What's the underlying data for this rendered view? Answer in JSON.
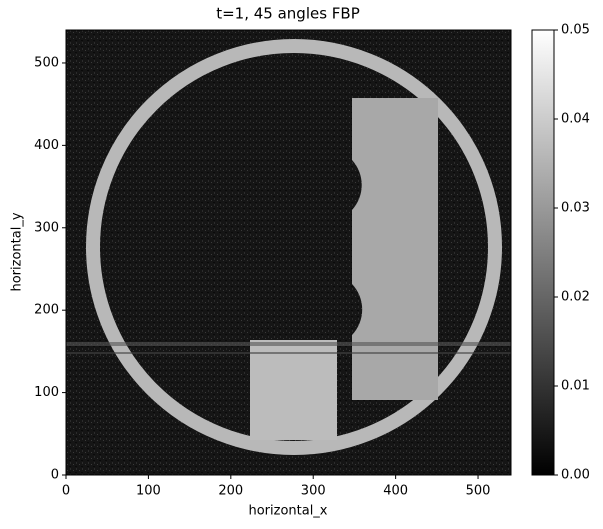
{
  "chart_data": {
    "type": "heatmap",
    "title": "t=1, 45 angles FBP",
    "x_label": "horizontal_x",
    "y_label": "horizontal_y",
    "xlim": [
      0,
      540
    ],
    "ylim": [
      0,
      540
    ],
    "xticks": [
      0,
      100,
      200,
      300,
      400,
      500
    ],
    "yticks": [
      0,
      100,
      200,
      300,
      400,
      500
    ],
    "colormap": "gray",
    "colorbar": {
      "lim": [
        0,
        0.05
      ],
      "ticks": [
        {
          "value": 0,
          "label": "0.00"
        },
        {
          "value": 0.01,
          "label": "0.01"
        },
        {
          "value": 0.02,
          "label": "0.02"
        },
        {
          "value": 0.03,
          "label": "0.03"
        },
        {
          "value": 0.04,
          "label": "0.04"
        },
        {
          "value": 0.05,
          "label": "0.05"
        }
      ]
    }
  }
}
